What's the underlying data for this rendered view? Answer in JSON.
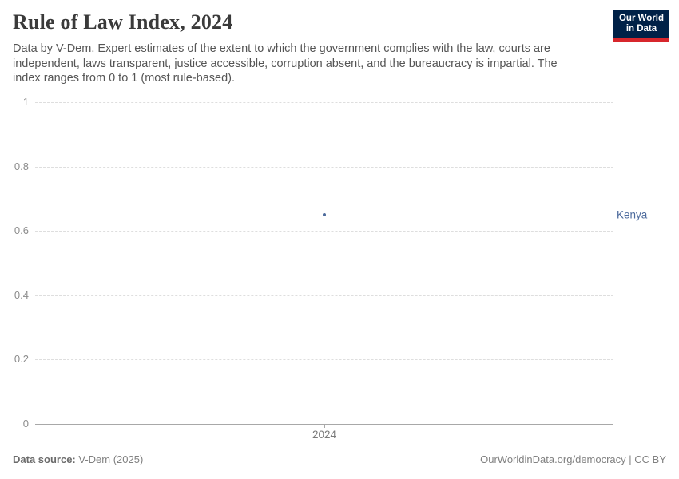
{
  "header": {
    "title": "Rule of Law Index, 2024",
    "subtitle": "Data by V-Dem. Expert estimates of the extent to which the government complies with the law, courts are independent, laws transparent, justice accessible, corruption absent, and the bureaucracy is impartial. The index ranges from 0 to 1 (most rule-based).",
    "logo": {
      "line1": "Our World",
      "line2": "in Data",
      "bg_color": "#002147",
      "accent_color": "#d7262c"
    }
  },
  "chart_data": {
    "type": "scatter",
    "title": "Rule of Law Index, 2024",
    "x": [
      2024
    ],
    "series": [
      {
        "name": "Kenya",
        "values": [
          0.65
        ],
        "color": "#4c6a9c"
      }
    ],
    "xlabel": "",
    "ylabel": "",
    "ylim": [
      0,
      1
    ],
    "yticks": [
      0,
      0.2,
      0.4,
      0.6,
      0.8,
      1
    ],
    "ytick_labels": [
      "0",
      "0.2",
      "0.4",
      "0.6",
      "0.8",
      "1"
    ],
    "xtick_labels": [
      "2024"
    ],
    "grid": "horizontal dashed gridlines, solid zero axis",
    "legend_position": "entity label right of point"
  },
  "footer": {
    "source_label": "Data source:",
    "source_value": " V-Dem (2025)",
    "credit": "OurWorldinData.org/democracy | CC BY"
  }
}
